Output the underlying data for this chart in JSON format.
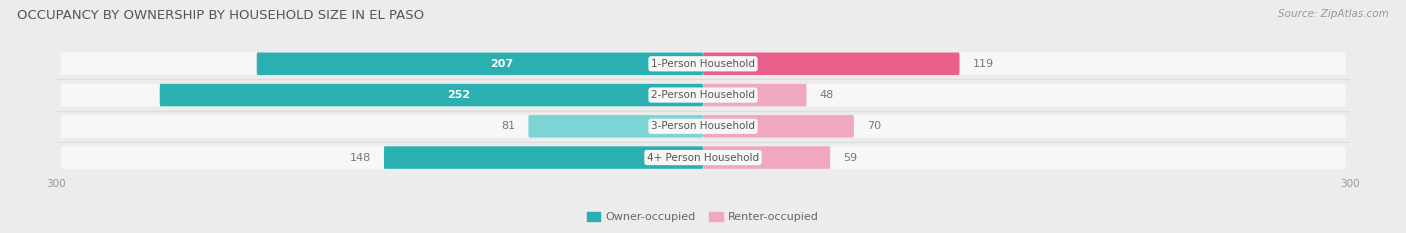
{
  "title": "OCCUPANCY BY OWNERSHIP BY HOUSEHOLD SIZE IN EL PASO",
  "source": "Source: ZipAtlas.com",
  "categories": [
    "1-Person Household",
    "2-Person Household",
    "3-Person Household",
    "4+ Person Household"
  ],
  "owner_values": [
    207,
    252,
    81,
    148
  ],
  "renter_values": [
    119,
    48,
    70,
    59
  ],
  "owner_color_dark": "#2ab0b0",
  "owner_color_light": "#7dd4d4",
  "renter_color_dark": "#e8608a",
  "renter_color_light": "#f0a8c0",
  "label_color_owner_large": "#ffffff",
  "label_color_small": "#777777",
  "background_color": "#ececec",
  "bar_background": "#f7f7f7",
  "sep_color": "#dddddd",
  "axis_max": 300,
  "bar_height": 0.72,
  "bar_gap": 0.08,
  "legend_owner": "Owner-occupied",
  "legend_renter": "Renter-occupied",
  "title_fontsize": 9.5,
  "source_fontsize": 7.5,
  "value_fontsize": 8,
  "category_fontsize": 7.5,
  "axis_label_fontsize": 7.5
}
